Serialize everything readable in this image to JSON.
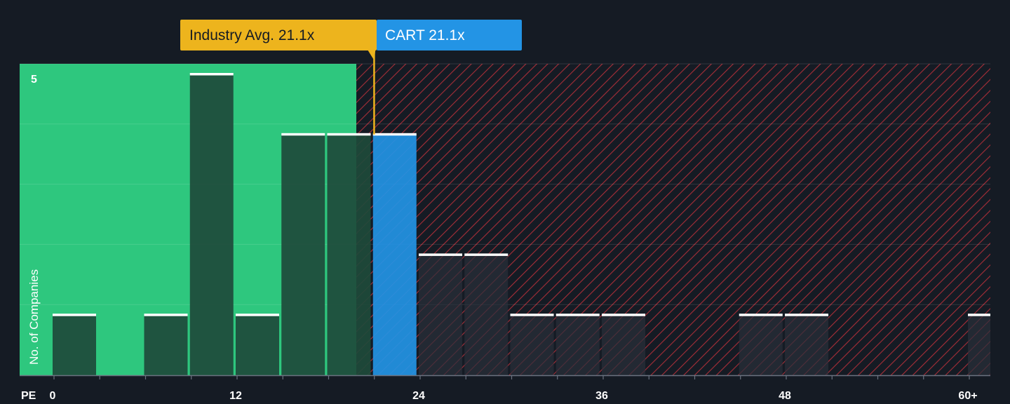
{
  "colors": {
    "background": "#151b24",
    "fair_zone": "#2ec77e",
    "overvalued_hatch": "#c0313b",
    "bar_dark": "#1e4a3b",
    "bar_hatched": "#2a2f3a",
    "highlight": "#2394e5",
    "industry": "#edb41d"
  },
  "callouts": {
    "industry": {
      "label": "Industry Avg. 21.1x",
      "value": 21.1
    },
    "company": {
      "label": "CART 21.1x",
      "value": 21.1
    }
  },
  "chart_data": {
    "type": "bar",
    "title": "",
    "xlabel": "PE",
    "ylabel": "No. of Companies",
    "xlim": [
      -6,
      62.5
    ],
    "ylim": [
      0,
      5.2
    ],
    "bin_width": 3,
    "fair_value_threshold": 20,
    "x_ticks": [
      {
        "value": 0,
        "label": "0"
      },
      {
        "value": 12,
        "label": "12"
      },
      {
        "value": 24,
        "label": "24"
      },
      {
        "value": 36,
        "label": "36"
      },
      {
        "value": 48,
        "label": "48"
      },
      {
        "value": 60,
        "label": "60+"
      }
    ],
    "y_ticks": [
      {
        "value": 5,
        "label": "5"
      }
    ],
    "bins": [
      {
        "start": 0,
        "count": 1
      },
      {
        "start": 3,
        "count": 0
      },
      {
        "start": 6,
        "count": 1
      },
      {
        "start": 9,
        "count": 5
      },
      {
        "start": 12,
        "count": 1
      },
      {
        "start": 15,
        "count": 4
      },
      {
        "start": 18,
        "count": 4
      },
      {
        "start": 21,
        "count": 4,
        "highlight": true
      },
      {
        "start": 24,
        "count": 2
      },
      {
        "start": 27,
        "count": 2
      },
      {
        "start": 30,
        "count": 1
      },
      {
        "start": 33,
        "count": 1
      },
      {
        "start": 36,
        "count": 1
      },
      {
        "start": 39,
        "count": 0
      },
      {
        "start": 42,
        "count": 0
      },
      {
        "start": 45,
        "count": 1
      },
      {
        "start": 48,
        "count": 1
      },
      {
        "start": 51,
        "count": 0
      },
      {
        "start": 54,
        "count": 0
      },
      {
        "start": 57,
        "count": 0
      },
      {
        "start": 60,
        "count": 1
      }
    ]
  }
}
